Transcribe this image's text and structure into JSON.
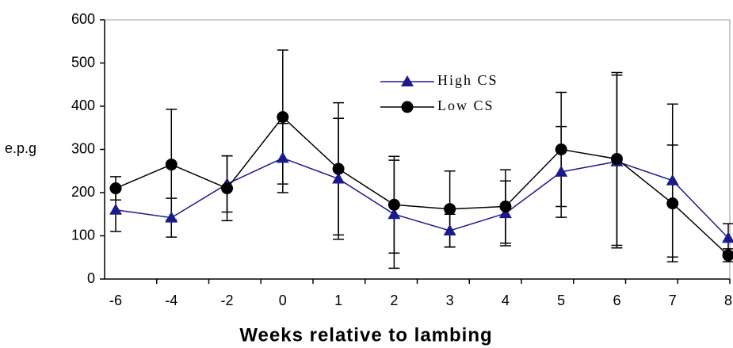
{
  "chart_data": {
    "type": "line",
    "x_label": "Weeks relative to lambing",
    "y_label": "e.p.g",
    "categories": [
      "-6",
      "-4",
      "-2",
      "0",
      "1",
      "2",
      "3",
      "4",
      "5",
      "6",
      "7",
      "8"
    ],
    "series": [
      {
        "name": "High CS",
        "color": "#1a1a8c",
        "marker": "triangle",
        "values": [
          160,
          142,
          220,
          280,
          232,
          150,
          112,
          152,
          248,
          272,
          228,
          95
        ],
        "errors": [
          50,
          45,
          65,
          80,
          140,
          125,
          38,
          75,
          105,
          200,
          177,
          33
        ]
      },
      {
        "name": "Low CS",
        "color": "#000000",
        "marker": "circle",
        "values": [
          210,
          265,
          210,
          375,
          255,
          172,
          162,
          168,
          300,
          278,
          175,
          55
        ],
        "errors": [
          27,
          128,
          75,
          155,
          153,
          112,
          88,
          85,
          132,
          200,
          135,
          15
        ]
      }
    ],
    "ylim": [
      0,
      600
    ],
    "yticks": [
      0,
      100,
      200,
      300,
      400,
      500,
      600
    ]
  }
}
